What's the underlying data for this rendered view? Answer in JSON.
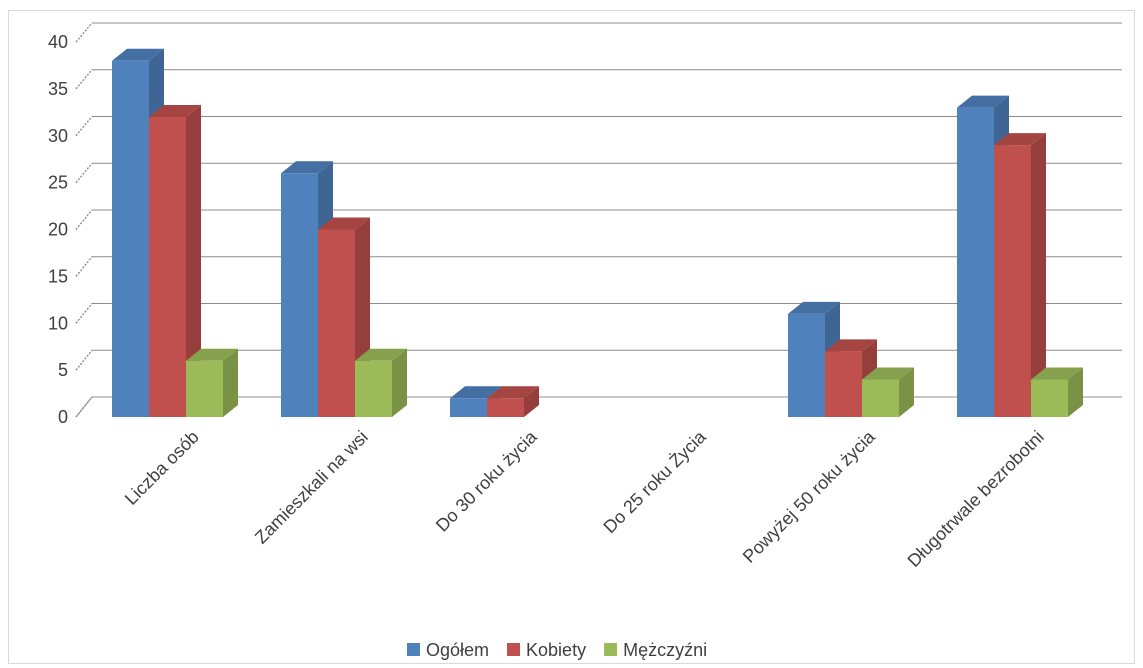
{
  "chart_data": {
    "type": "bar",
    "title": "",
    "xlabel": "",
    "ylabel": "",
    "ylim": [
      0,
      40
    ],
    "yticks": [
      0,
      5,
      10,
      15,
      20,
      25,
      30,
      35,
      40
    ],
    "grid": true,
    "legend_position": "bottom",
    "categories": [
      "Liczba osób",
      "Zamieszkali na wsi",
      "Do 30 roku życia",
      "Do 25 roku Życia",
      "Powyżej 50 roku życia",
      "Długotrwale bezrobotni"
    ],
    "series": [
      {
        "name": "Ogółem",
        "color": "#4f81bd",
        "values": [
          38,
          26,
          2,
          0,
          11,
          33
        ]
      },
      {
        "name": "Kobiety",
        "color": "#c0504d",
        "values": [
          32,
          20,
          2,
          0,
          7,
          29
        ]
      },
      {
        "name": "Mężczyźni",
        "color": "#9bbb59",
        "values": [
          6,
          6,
          0,
          0,
          4,
          4
        ]
      }
    ]
  }
}
